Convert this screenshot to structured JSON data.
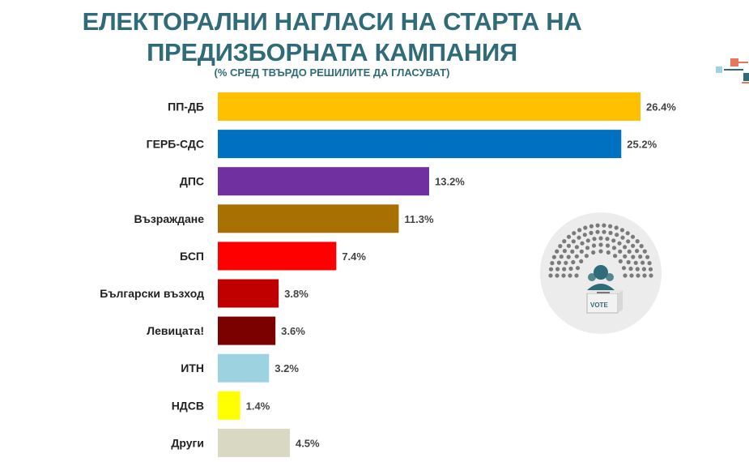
{
  "chart_data": {
    "type": "bar",
    "orientation": "horizontal",
    "title": "ЕЛЕКТОРАЛНИ НАГЛАСИ НА СТАРТА НА ПРЕДИЗБОРНАТА КАМПАНИЯ",
    "subtitle": "(% СРЕД ТВЪРДО РЕШИЛИТЕ ДА ГЛАСУВАТ)",
    "categories": [
      "ПП-ДБ",
      "ГЕРБ-СДС",
      "ДПС",
      "Възраждане",
      "БСП",
      "Български възход",
      "Левицата!",
      "ИТН",
      "НДСВ",
      "Други"
    ],
    "values": [
      26.4,
      25.2,
      13.2,
      11.3,
      7.4,
      3.8,
      3.6,
      3.2,
      1.4,
      4.5
    ],
    "value_labels": [
      "26.4%",
      "25.2%",
      "13.2%",
      "11.3%",
      "7.4%",
      "3.8%",
      "3.6%",
      "3.2%",
      "1.4%",
      "4.5%"
    ],
    "colors": [
      "#ffc000",
      "#0070c0",
      "#7030a0",
      "#a87000",
      "#ff0000",
      "#c00000",
      "#7b0000",
      "#9dd3e0",
      "#ffff00",
      "#d9d9c3"
    ],
    "xlim": [
      0,
      26.4
    ],
    "grid": false,
    "legend": "none"
  },
  "emblem": {
    "ballot_text": "VOTE",
    "icon": "parliament-vote-icon"
  },
  "decoration": {
    "icon": "corner-squares-icon",
    "colors": [
      "#e8765a",
      "#2f6b78",
      "#9fd3df"
    ]
  }
}
